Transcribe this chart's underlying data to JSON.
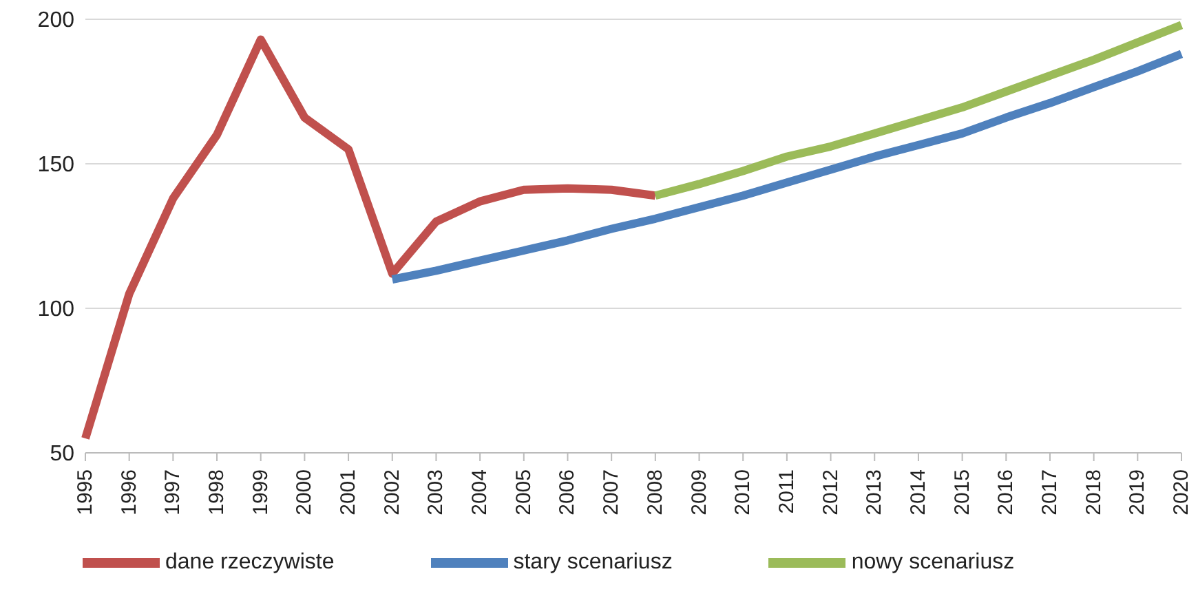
{
  "chart_data": {
    "type": "line",
    "categories": [
      "1995",
      "1996",
      "1997",
      "1998",
      "1999",
      "2000",
      "2001",
      "2002",
      "2003",
      "2004",
      "2005",
      "2006",
      "2007",
      "2008",
      "2009",
      "2010",
      "2011",
      "2012",
      "2013",
      "2014",
      "2015",
      "2016",
      "2017",
      "2018",
      "2019",
      "2020"
    ],
    "series": [
      {
        "name": "dane rzeczywiste",
        "color": "#c0504d",
        "values": [
          55,
          105,
          138,
          160,
          193,
          166,
          155,
          112,
          130,
          137,
          141,
          141.5,
          141,
          139,
          null,
          null,
          null,
          null,
          null,
          null,
          null,
          null,
          null,
          null,
          null,
          null
        ]
      },
      {
        "name": "stary scenariusz",
        "color": "#4f81bd",
        "values": [
          null,
          null,
          null,
          null,
          null,
          null,
          null,
          110,
          113,
          116.5,
          120,
          123.5,
          127.5,
          131,
          135,
          139,
          143.5,
          148,
          152.5,
          156.5,
          160.5,
          166,
          171,
          176.5,
          182,
          188
        ]
      },
      {
        "name": "nowy scenariusz",
        "color": "#9bbb59",
        "values": [
          null,
          null,
          null,
          null,
          null,
          null,
          null,
          null,
          null,
          null,
          null,
          null,
          null,
          139,
          143,
          147.5,
          152.5,
          156,
          160.5,
          165,
          169.5,
          175,
          180.5,
          186,
          192,
          198
        ]
      }
    ],
    "ylim": [
      50,
      200
    ],
    "yticks": [
      50,
      100,
      150,
      200
    ],
    "grid": "y",
    "legend": "bottom",
    "marker": "none",
    "line_style": "solid"
  }
}
